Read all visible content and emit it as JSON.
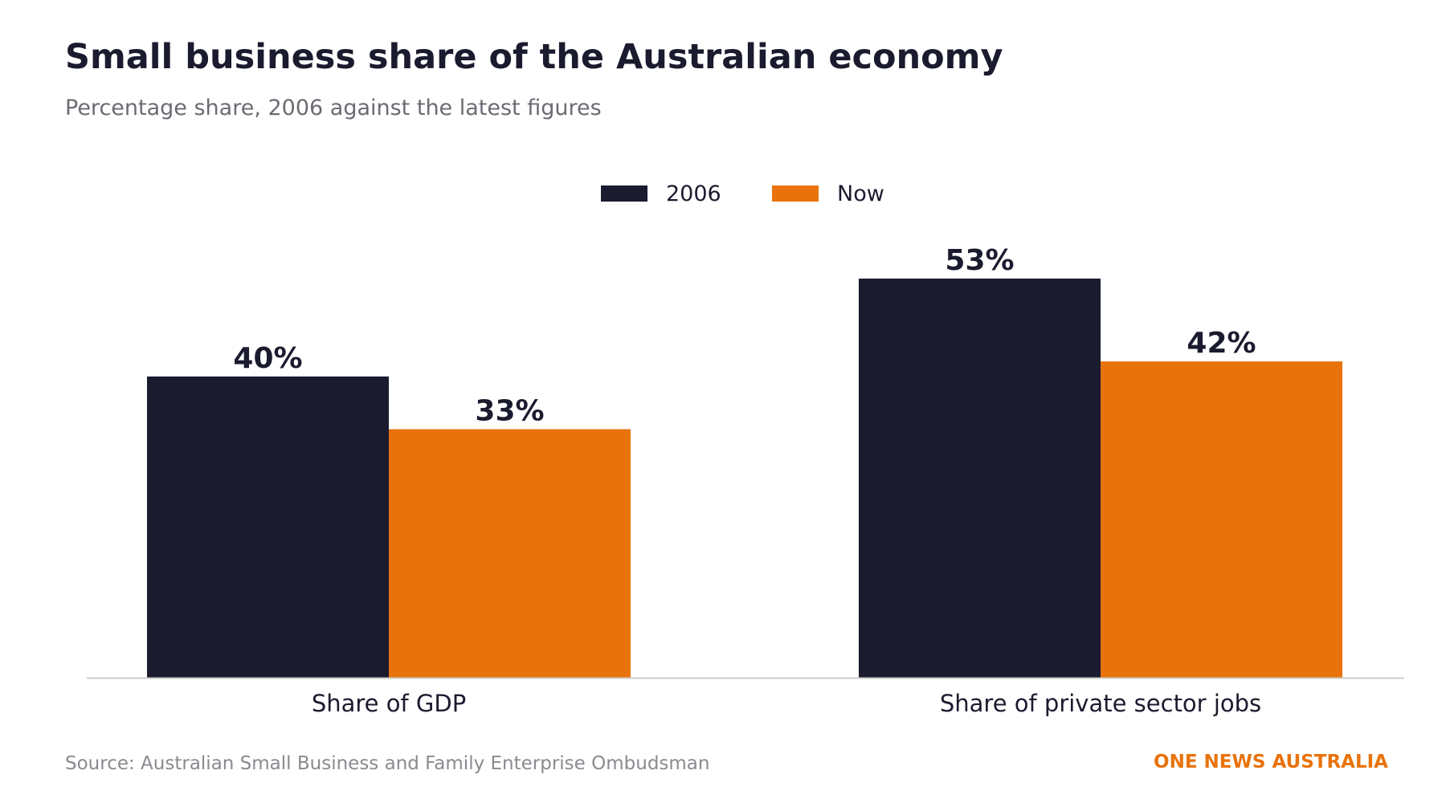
{
  "header": {
    "title": "Small business share of the Australian economy",
    "subtitle": "Percentage share, 2006 against the latest figures"
  },
  "footer": {
    "source": "Source: Australian Small Business and Family Enterprise Ombudsman",
    "brand": "ONE NEWS AUSTRALIA"
  },
  "colors": {
    "series_2006": "#1b1b2f",
    "series_now": "#e8730c",
    "text_dark": "#1b1b2f",
    "axis_line": "#cccccc"
  },
  "chart_data": {
    "type": "bar",
    "title": "Small business share of the Australian economy",
    "subtitle": "Percentage share, 2006 against the latest figures",
    "categories": [
      "Share of GDP",
      "Share of private sector jobs"
    ],
    "series": [
      {
        "name": "2006",
        "values": [
          40,
          53
        ],
        "labels": [
          "40%",
          "53%"
        ],
        "color": "#1b1b2f"
      },
      {
        "name": "Now",
        "values": [
          33,
          42
        ],
        "labels": [
          "33%",
          "42%"
        ],
        "color": "#e8730c"
      }
    ],
    "ylim": [
      0,
      58
    ],
    "grid": false,
    "legend": "top-center",
    "xlabel": "",
    "ylabel": ""
  }
}
